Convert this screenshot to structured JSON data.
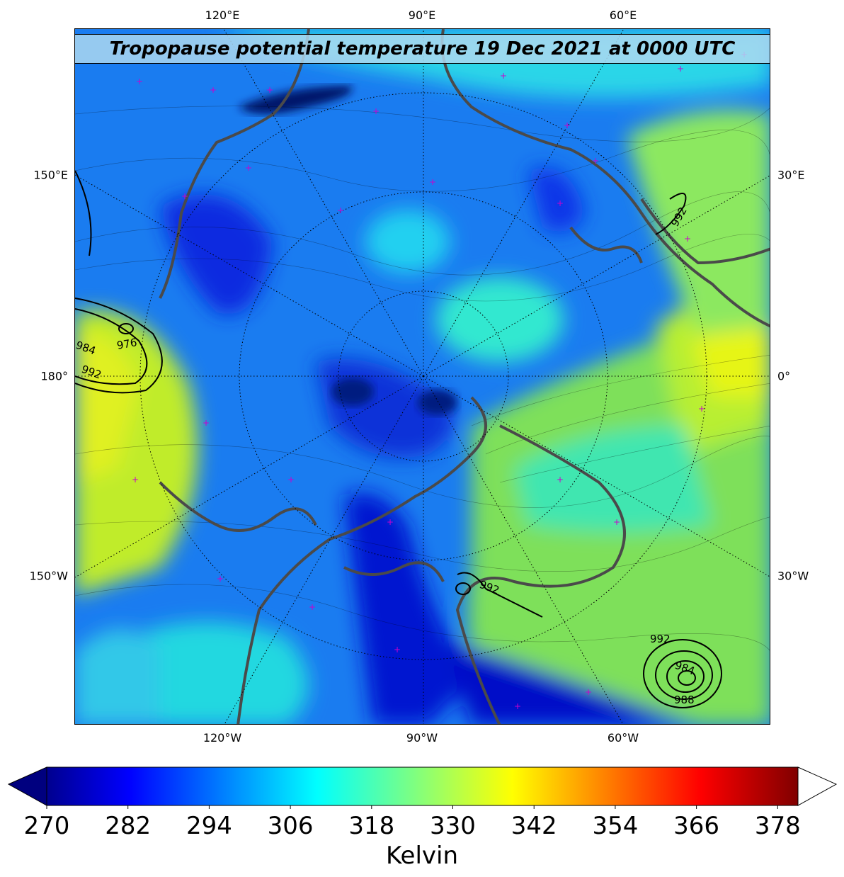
{
  "title": "Tropopause potential temperature 19 Dec 2021 at 0000 UTC",
  "ticks": {
    "top": [
      "120°E",
      "90°E",
      "60°E"
    ],
    "bottom": [
      "120°W",
      "90°W",
      "60°W"
    ],
    "left": [
      "150°E",
      "180°",
      "150°W"
    ],
    "right": [
      "30°E",
      "0°",
      "30°W"
    ]
  },
  "colorbar": {
    "label": "Kelvin",
    "min": 270,
    "max": 381,
    "ticks": [
      "270",
      "282",
      "294",
      "306",
      "318",
      "330",
      "342",
      "354",
      "366",
      "378"
    ],
    "extend": "both",
    "colormap": "jet"
  },
  "contour_labels": [
    "984",
    "976",
    "992",
    "992",
    "992",
    "992",
    "984",
    "988"
  ],
  "colors": {
    "coastline": "#4a4a4a",
    "marker": "#cc00cc",
    "pressure_contour": "#000000"
  }
}
